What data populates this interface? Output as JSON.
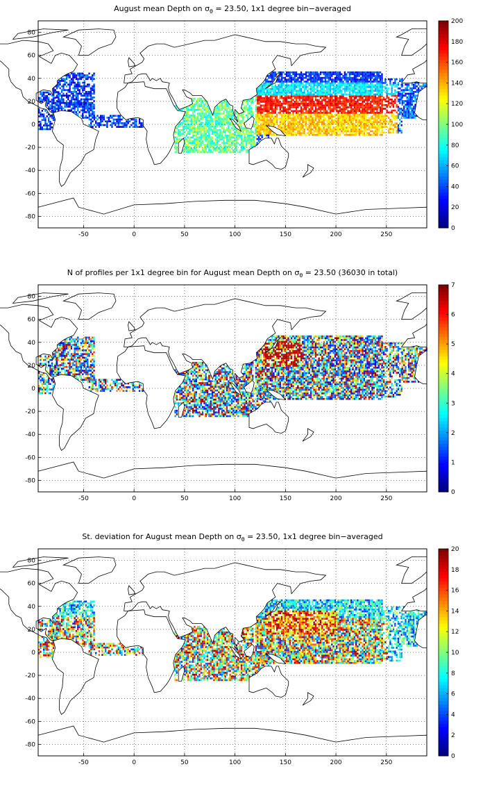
{
  "figure": {
    "panels": [
      {
        "title_pre": "August mean Depth on ",
        "title_sigma": "σ",
        "title_sub": "θ",
        "title_post": " = 23.50, 1x1 degree bin−averaged",
        "colorbar": {
          "min": 0,
          "max": 200,
          "ticks": [
            "0",
            "20",
            "40",
            "60",
            "80",
            "100",
            "120",
            "140",
            "160",
            "180",
            "200"
          ]
        },
        "pattern": "depth"
      },
      {
        "title_pre": "N of profiles per 1x1 degree bin for August mean Depth on ",
        "title_sigma": "σ",
        "title_sub": "θ",
        "title_post": " = 23.50 (36030 in total)",
        "colorbar": {
          "min": 0,
          "max": 7,
          "ticks": [
            "0",
            "1",
            "2",
            "3",
            "4",
            "5",
            "6",
            "7"
          ]
        },
        "pattern": "count"
      },
      {
        "title_pre": "St. deviation for August mean Depth on ",
        "title_sigma": "σ",
        "title_sub": "θ",
        "title_post": " = 23.50, 1x1 degree bin−averaged",
        "colorbar": {
          "min": 0,
          "max": 20,
          "ticks": [
            "0",
            "2",
            "4",
            "6",
            "8",
            "10",
            "12",
            "14",
            "16",
            "18",
            "20"
          ]
        },
        "pattern": "std"
      }
    ],
    "x_axis": {
      "range": [
        -95,
        290
      ],
      "ticks": [
        "-50",
        "0",
        "50",
        "100",
        "150",
        "200",
        "250"
      ],
      "tick_values": [
        -50,
        0,
        50,
        100,
        150,
        200,
        250
      ]
    },
    "y_axis": {
      "range": [
        -90,
        90
      ],
      "ticks": [
        "80",
        "60",
        "40",
        "20",
        "0",
        "-20",
        "-40",
        "-60",
        "-80"
      ],
      "tick_values": [
        80,
        60,
        40,
        20,
        0,
        -20,
        -40,
        -60,
        -80
      ]
    },
    "grid": "dotted",
    "colormap": "jet"
  }
}
